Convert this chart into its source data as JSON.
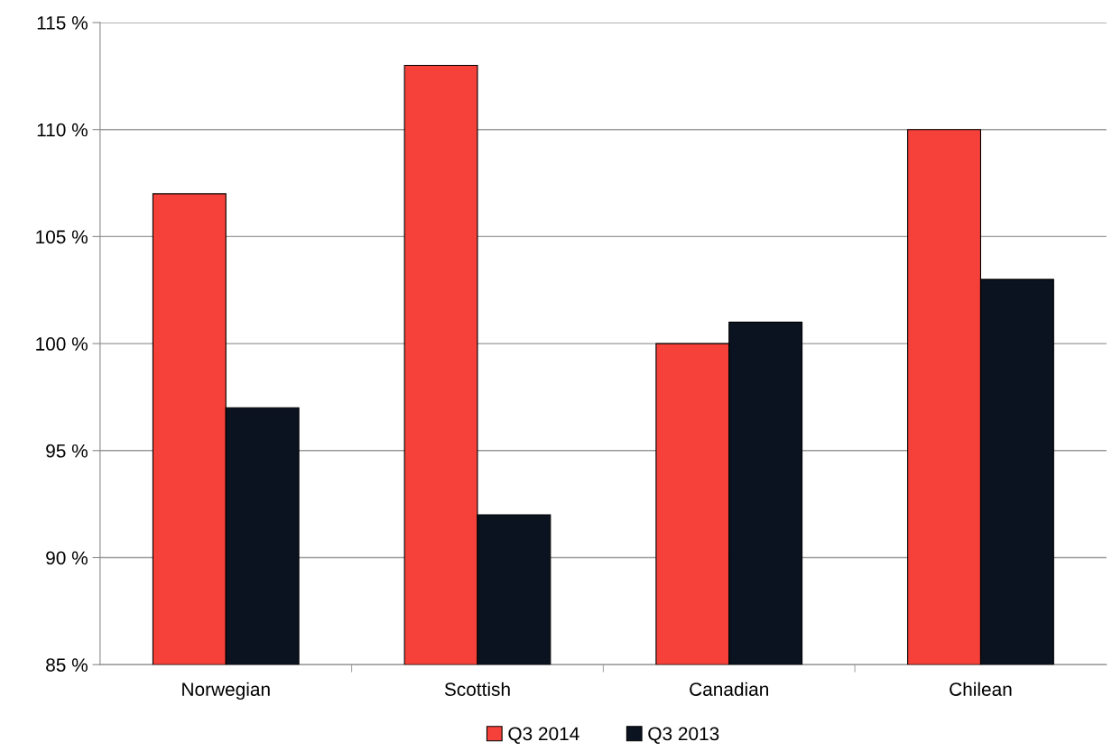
{
  "chart_data": {
    "type": "bar",
    "categories": [
      "Norwegian",
      "Scottish",
      "Canadian",
      "Chilean"
    ],
    "series": [
      {
        "name": "Q3 2014",
        "color": "#f5413a",
        "values": [
          107,
          113,
          100,
          110
        ]
      },
      {
        "name": "Q3 2013",
        "color": "#0b1220",
        "values": [
          97,
          92,
          101,
          103
        ]
      }
    ],
    "ylim": [
      85,
      115
    ],
    "yticks": [
      {
        "value": 85,
        "label": "85 %"
      },
      {
        "value": 90,
        "label": "90 %"
      },
      {
        "value": 95,
        "label": "95 %"
      },
      {
        "value": 100,
        "label": "100 %"
      },
      {
        "value": 105,
        "label": "105 %"
      },
      {
        "value": 110,
        "label": "110 %"
      },
      {
        "value": 115,
        "label": "115 %"
      }
    ],
    "grid": "y",
    "legend": "bottom"
  }
}
